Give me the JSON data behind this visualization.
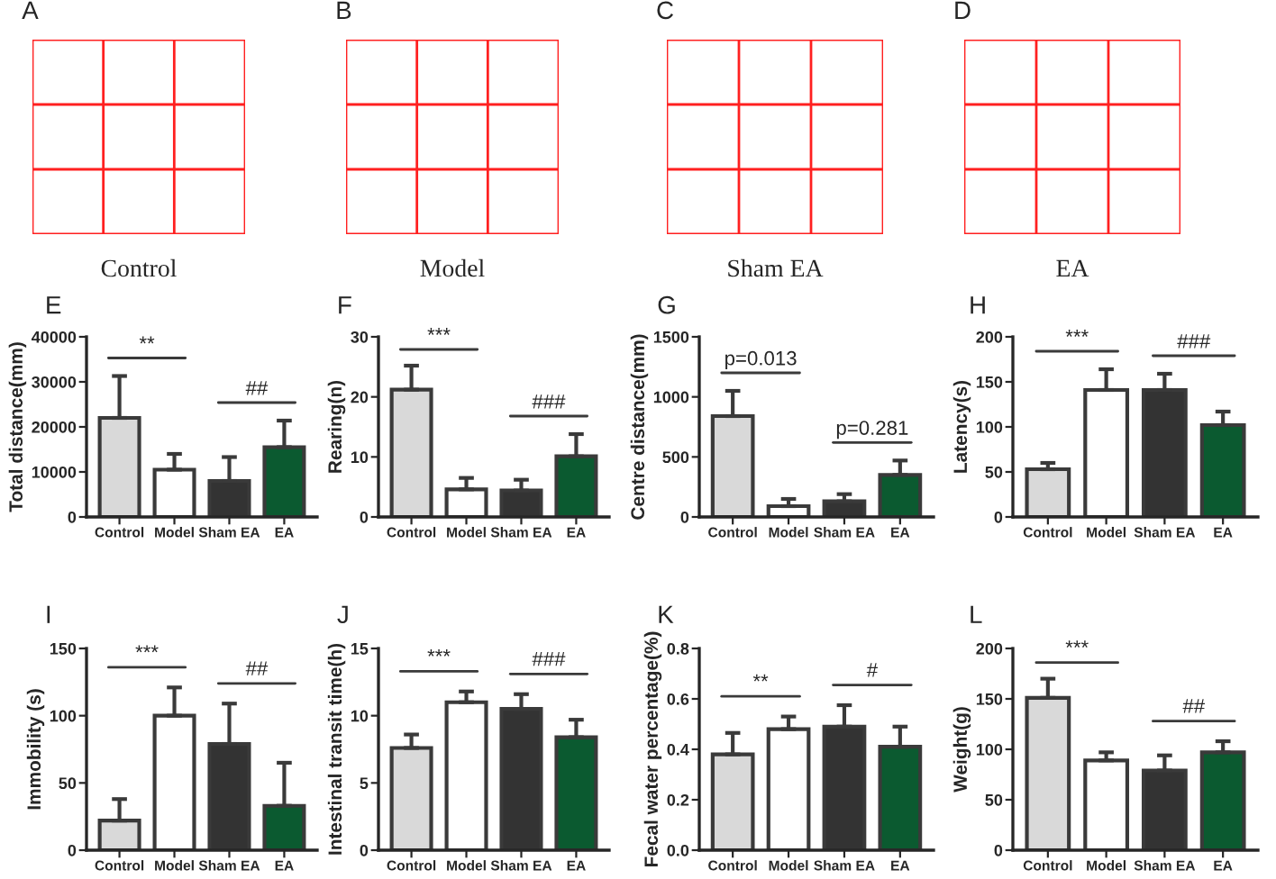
{
  "chart_data": [
    {
      "type": "other",
      "title": "A",
      "xlabel": "Control"
    },
    {
      "type": "other",
      "title": "B",
      "xlabel": "Model"
    },
    {
      "type": "other",
      "title": "C",
      "xlabel": "Sham EA"
    },
    {
      "type": "other",
      "title": "D",
      "xlabel": "EA"
    },
    {
      "type": "bar",
      "title": "E",
      "ylabel": "Total distance(mm)",
      "categories": [
        "Control",
        "Model",
        "Sham EA",
        "EA"
      ],
      "values": [
        22000,
        10500,
        8000,
        15500
      ],
      "errors": [
        [
          22000,
          31300
        ],
        [
          10500,
          14000
        ],
        [
          8000,
          13300
        ],
        [
          15500,
          21400
        ]
      ],
      "colors": [
        "#d9d9d9",
        "#ffffff",
        "#333333",
        "#0b5a30"
      ],
      "ylim": [
        0,
        40000
      ],
      "yticks": [
        0,
        10000,
        20000,
        30000,
        40000
      ],
      "annotations": [
        "**",
        "##"
      ]
    },
    {
      "type": "bar",
      "title": "F",
      "ylabel": "Rearing(n)",
      "categories": [
        "Control",
        "Model",
        "Sham EA",
        "EA"
      ],
      "values": [
        21.2,
        4.6,
        4.4,
        10.1
      ],
      "errors": [
        [
          21.2,
          25.2
        ],
        [
          4.6,
          6.5
        ],
        [
          4.4,
          6.2
        ],
        [
          10.1,
          13.8
        ]
      ],
      "colors": [
        "#d9d9d9",
        "#ffffff",
        "#333333",
        "#0b5a30"
      ],
      "ylim": [
        0,
        30
      ],
      "yticks": [
        0,
        10,
        20,
        30
      ],
      "annotations": [
        "***",
        "###"
      ]
    },
    {
      "type": "bar",
      "title": "G",
      "ylabel": "Centre distance(mm)",
      "categories": [
        "Control",
        "Model",
        "Sham EA",
        "EA"
      ],
      "values": [
        840,
        90,
        130,
        350
      ],
      "errors": [
        [
          840,
          1050
        ],
        [
          90,
          150
        ],
        [
          130,
          190
        ],
        [
          350,
          470
        ]
      ],
      "colors": [
        "#d9d9d9",
        "#ffffff",
        "#333333",
        "#0b5a30"
      ],
      "ylim": [
        0,
        1500
      ],
      "yticks": [
        0,
        500,
        1000,
        1500
      ],
      "annotations": [
        "p=0.013",
        "p=0.281"
      ]
    },
    {
      "type": "bar",
      "title": "H",
      "ylabel": "Latency(s)",
      "categories": [
        "Control",
        "Model",
        "Sham EA",
        "EA"
      ],
      "values": [
        53,
        141,
        141,
        102
      ],
      "errors": [
        [
          53,
          60
        ],
        [
          141,
          164
        ],
        [
          141,
          159
        ],
        [
          102,
          117
        ]
      ],
      "colors": [
        "#d9d9d9",
        "#ffffff",
        "#333333",
        "#0b5a30"
      ],
      "ylim": [
        0,
        200
      ],
      "yticks": [
        0,
        50,
        100,
        150,
        200
      ],
      "annotations": [
        "***",
        "###"
      ]
    },
    {
      "type": "bar",
      "title": "I",
      "ylabel": "Immobility (s)",
      "categories": [
        "Control",
        "Model",
        "Sham EA",
        "EA"
      ],
      "values": [
        22,
        100,
        79,
        33
      ],
      "errors": [
        [
          22,
          38
        ],
        [
          100,
          121
        ],
        [
          79,
          109
        ],
        [
          33,
          65
        ]
      ],
      "colors": [
        "#d9d9d9",
        "#ffffff",
        "#333333",
        "#0b5a30"
      ],
      "ylim": [
        0,
        150
      ],
      "yticks": [
        0,
        50,
        100,
        150
      ],
      "annotations": [
        "***",
        "##"
      ]
    },
    {
      "type": "bar",
      "title": "J",
      "ylabel": "Intestinal transit time(h)",
      "categories": [
        "Control",
        "Model",
        "Sham EA",
        "EA"
      ],
      "values": [
        7.6,
        11.0,
        10.5,
        8.4
      ],
      "errors": [
        [
          7.6,
          8.6
        ],
        [
          11.0,
          11.8
        ],
        [
          10.5,
          11.6
        ],
        [
          8.4,
          9.7
        ]
      ],
      "colors": [
        "#d9d9d9",
        "#ffffff",
        "#333333",
        "#0b5a30"
      ],
      "ylim": [
        0,
        15
      ],
      "yticks": [
        0,
        5,
        10,
        15
      ],
      "annotations": [
        "***",
        "###"
      ]
    },
    {
      "type": "bar",
      "title": "K",
      "ylabel": "Fecal water percentage(%)",
      "categories": [
        "Control",
        "Model",
        "Sham EA",
        "EA"
      ],
      "values": [
        0.38,
        0.48,
        0.49,
        0.41
      ],
      "errors": [
        [
          0.38,
          0.465
        ],
        [
          0.48,
          0.53
        ],
        [
          0.49,
          0.575
        ],
        [
          0.41,
          0.49
        ]
      ],
      "colors": [
        "#d9d9d9",
        "#ffffff",
        "#333333",
        "#0b5a30"
      ],
      "ylim": [
        0,
        0.8
      ],
      "yticks": [
        {
          "value": 0,
          "label": "0.0"
        },
        0.2,
        0.4,
        0.6,
        0.8
      ],
      "annotations": [
        "**",
        "#"
      ]
    },
    {
      "type": "bar",
      "title": "L",
      "ylabel": "Weight(g)",
      "categories": [
        "Control",
        "Model",
        "Sham EA",
        "EA"
      ],
      "values": [
        151,
        89,
        79,
        97
      ],
      "errors": [
        [
          151,
          170
        ],
        [
          89,
          97
        ],
        [
          79,
          94
        ],
        [
          97,
          108
        ]
      ],
      "colors": [
        "#d9d9d9",
        "#ffffff",
        "#333333",
        "#0b5a30"
      ],
      "ylim": [
        0,
        200
      ],
      "yticks": [
        0,
        50,
        100,
        150,
        200
      ],
      "annotations": [
        "***",
        "##"
      ]
    }
  ]
}
